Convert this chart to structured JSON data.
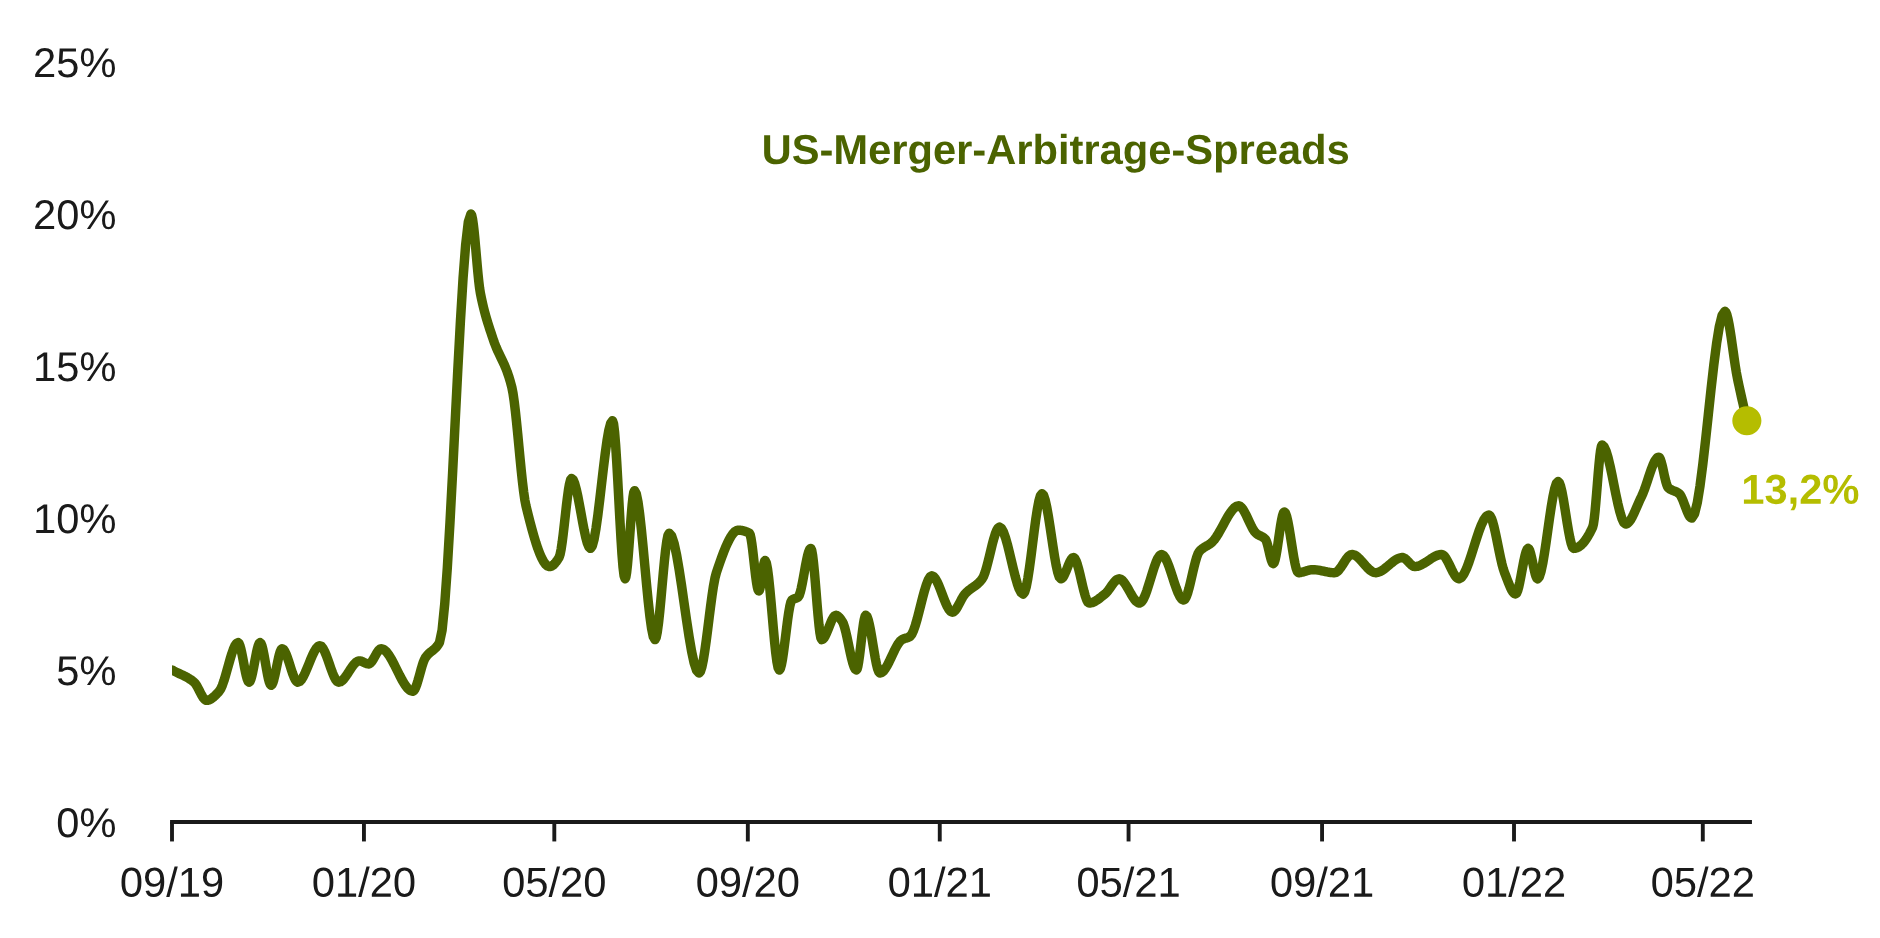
{
  "chart_data": {
    "type": "line",
    "title": "US-Merger-Arbitrage-Spreads",
    "x": [
      "2019-09-01",
      "2019-09-15",
      "2019-09-23",
      "2019-10-01",
      "2019-10-13",
      "2019-10-20",
      "2019-10-27",
      "2019-11-03",
      "2019-11-10",
      "2019-11-20",
      "2019-12-04",
      "2019-12-16",
      "2019-12-29",
      "2020-01-04",
      "2020-01-12",
      "2020-02-01",
      "2020-02-09",
      "2020-02-18",
      "2020-03-09",
      "2020-03-15",
      "2020-03-23",
      "2020-04-04",
      "2020-04-13",
      "2020-04-28",
      "2020-05-04",
      "2020-05-12",
      "2020-05-24",
      "2020-06-07",
      "2020-06-15",
      "2020-06-21",
      "2020-07-04",
      "2020-07-13",
      "2020-08-01",
      "2020-08-12",
      "2020-08-26",
      "2020-09-02",
      "2020-09-08",
      "2020-09-12",
      "2020-09-21",
      "2020-09-29",
      "2020-10-03",
      "2020-10-11",
      "2020-10-18",
      "2020-10-27",
      "2020-10-31",
      "2020-11-09",
      "2020-11-15",
      "2020-11-24",
      "2020-12-08",
      "2020-12-13",
      "2020-12-27",
      "2021-01-09",
      "2021-01-17",
      "2021-01-28",
      "2021-02-08",
      "2021-02-23",
      "2021-03-07",
      "2021-03-19",
      "2021-03-27",
      "2021-04-06",
      "2021-04-16",
      "2021-04-25",
      "2021-05-08",
      "2021-05-22",
      "2021-06-05",
      "2021-06-15",
      "2021-06-23",
      "2021-07-10",
      "2021-07-21",
      "2021-07-27",
      "2021-08-01",
      "2021-08-08",
      "2021-08-17",
      "2021-08-26",
      "2021-09-09",
      "2021-09-20",
      "2021-10-05",
      "2021-10-22",
      "2021-10-30",
      "2021-11-16",
      "2021-11-27",
      "2021-12-16",
      "2021-12-26",
      "2022-01-02",
      "2022-01-10",
      "2022-01-16",
      "2022-01-29",
      "2022-02-08",
      "2022-02-20",
      "2022-02-26",
      "2022-03-13",
      "2022-03-23",
      "2022-04-03",
      "2022-04-09",
      "2022-04-16",
      "2022-04-24",
      "2022-05-15",
      "2022-05-23",
      "2022-05-29"
    ],
    "series": [
      {
        "color": "#4b6300",
        "values": [
          5.0,
          4.6,
          4.0,
          4.3,
          5.9,
          4.6,
          5.9,
          4.5,
          5.7,
          4.6,
          5.8,
          4.6,
          5.3,
          5.2,
          5.7,
          4.3,
          5.4,
          5.9,
          20.0,
          17.4,
          15.9,
          14.3,
          10.4,
          8.4,
          8.7,
          11.3,
          9.0,
          13.2,
          8.0,
          10.9,
          6.0,
          9.5,
          4.9,
          8.2,
          9.6,
          9.5,
          7.6,
          8.6,
          5.0,
          7.3,
          7.4,
          9.0,
          6.0,
          6.8,
          6.6,
          5.0,
          6.8,
          4.9,
          6.0,
          6.1,
          8.1,
          6.9,
          7.5,
          8.0,
          9.7,
          7.5,
          10.8,
          8.0,
          8.7,
          7.2,
          7.5,
          8.0,
          7.2,
          8.8,
          7.3,
          8.9,
          9.2,
          10.4,
          9.5,
          9.3,
          8.5,
          10.2,
          8.2,
          8.3,
          8.2,
          8.8,
          8.2,
          8.7,
          8.4,
          8.8,
          8.0,
          10.1,
          8.2,
          7.5,
          9.0,
          8.0,
          11.2,
          9.0,
          9.7,
          12.4,
          9.8,
          10.7,
          12.0,
          11.0,
          10.8,
          10.0,
          16.8,
          14.6,
          13.2
        ]
      },
      {
        "type": "scatter",
        "x": [
          "2022-05-29"
        ],
        "values": [
          13.2
        ],
        "color": "#b5bd00",
        "marker": "circle",
        "value_labels": [
          "13,2%"
        ]
      }
    ],
    "xlim": [
      "2019-09-01",
      "2022-05-31"
    ],
    "xticks": [
      {
        "value": "2019-09-01",
        "label": "09/19"
      },
      {
        "value": "2020-01-01",
        "label": "01/20"
      },
      {
        "value": "2020-05-01",
        "label": "05/20"
      },
      {
        "value": "2020-09-01",
        "label": "09/20"
      },
      {
        "value": "2021-01-01",
        "label": "01/21"
      },
      {
        "value": "2021-05-01",
        "label": "05/21"
      },
      {
        "value": "2021-09-01",
        "label": "09/21"
      },
      {
        "value": "2022-01-01",
        "label": "01/22"
      },
      {
        "value": "2022-05-01",
        "label": "05/22"
      }
    ],
    "ylim": [
      0,
      25
    ],
    "yticks": [
      {
        "value": 0,
        "label": "0%"
      },
      {
        "value": 5,
        "label": "5%"
      },
      {
        "value": 10,
        "label": "10%"
      },
      {
        "value": 15,
        "label": "15%"
      },
      {
        "value": 20,
        "label": "20%"
      },
      {
        "value": 25,
        "label": "25%"
      }
    ],
    "line_style": "solid",
    "marker": "none"
  }
}
